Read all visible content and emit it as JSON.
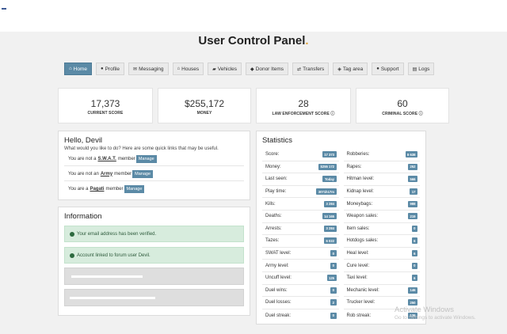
{
  "page": {
    "title": "User Control Panel",
    "title_accent": "."
  },
  "nav": [
    {
      "label": "Home",
      "icon": "home-icon",
      "glyph": "⌂",
      "active": true
    },
    {
      "label": "Profile",
      "icon": "user-icon",
      "glyph": "●",
      "active": false
    },
    {
      "label": "Messaging",
      "icon": "envelope-icon",
      "glyph": "✉",
      "active": false
    },
    {
      "label": "Houses",
      "icon": "house-icon",
      "glyph": "⌂",
      "active": false
    },
    {
      "label": "Vehicles",
      "icon": "car-icon",
      "glyph": "▰",
      "active": false
    },
    {
      "label": "Donor Items",
      "icon": "mask-icon",
      "glyph": "◆",
      "active": false
    },
    {
      "label": "Transfers",
      "icon": "exchange-icon",
      "glyph": "⇄",
      "active": false
    },
    {
      "label": "Tag area",
      "icon": "tag-icon",
      "glyph": "◈",
      "active": false
    },
    {
      "label": "Support",
      "icon": "chat-icon",
      "glyph": "●",
      "active": false
    },
    {
      "label": "Logs",
      "icon": "file-icon",
      "glyph": "▤",
      "active": false
    }
  ],
  "summary": [
    {
      "value": "17,373",
      "label": "CURRENT SCORE"
    },
    {
      "value": "$255,172",
      "label": "MONEY"
    },
    {
      "value": "28",
      "label": "LAW ENFORCEMENT SCORE ⓘ"
    },
    {
      "value": "60",
      "label": "CRIMINAL SCORE ⓘ"
    }
  ],
  "hello": {
    "title": "Hello, Devil",
    "subtitle": "What would you like to do? Here are some quick links that may be useful.",
    "links": [
      {
        "prefix": "You are not a",
        "group": "S.W.A.T.",
        "suffix": "member",
        "button": "Manage"
      },
      {
        "prefix": "You are not an",
        "group": "Army",
        "suffix": "member",
        "button": "Manage"
      },
      {
        "prefix": "You are a",
        "group": "Pagati",
        "suffix": "member",
        "button": "Manage"
      }
    ]
  },
  "information": {
    "title": "Information",
    "alerts": [
      "Your email address has been verified.",
      "Account linked to forum user Devil."
    ]
  },
  "statistics": {
    "title": "Statistics",
    "left": [
      {
        "label": "Score:",
        "value": "17 373"
      },
      {
        "label": "Money:",
        "value": "$255 172"
      },
      {
        "label": "Last seen:",
        "value": "Today"
      },
      {
        "label": "Play time:",
        "value": "3071h17m"
      },
      {
        "label": "Kills:",
        "value": "3 284"
      },
      {
        "label": "Deaths:",
        "value": "14 165"
      },
      {
        "label": "Arrests:",
        "value": "3 284"
      },
      {
        "label": "Tazes:",
        "value": "6 022"
      },
      {
        "label": "SWAT level:",
        "value": "0"
      },
      {
        "label": "Army level:",
        "value": "0"
      },
      {
        "label": "Uncuff level:",
        "value": "125"
      },
      {
        "label": "Duel wins:",
        "value": "0"
      },
      {
        "label": "Duel losses:",
        "value": "2"
      },
      {
        "label": "Duel streak:",
        "value": "0"
      }
    ],
    "right": [
      {
        "label": "Robberies:",
        "value": "8 638"
      },
      {
        "label": "Rapes:",
        "value": "252"
      },
      {
        "label": "Hitman level:",
        "value": "566"
      },
      {
        "label": "Kidnap level:",
        "value": "17"
      },
      {
        "label": "Moneybags:",
        "value": "988"
      },
      {
        "label": "Weapon sales:",
        "value": "219"
      },
      {
        "label": "Item sales:",
        "value": "0"
      },
      {
        "label": "Hotdogs sales:",
        "value": "6"
      },
      {
        "label": "Heal level:",
        "value": "6"
      },
      {
        "label": "Cure level:",
        "value": "0"
      },
      {
        "label": "Taxi level:",
        "value": "6"
      },
      {
        "label": "Mechanic level:",
        "value": "146"
      },
      {
        "label": "Trucker level:",
        "value": "250"
      },
      {
        "label": "Rob streak:",
        "value": "136"
      }
    ]
  },
  "watermark": {
    "line1": "Activate Windows",
    "line2": "Go to Settings to activate Windows."
  },
  "colors": {
    "accent": "#5b8aa6",
    "brand_dot": "#e0a23a",
    "success_bg": "#d7ecdd"
  }
}
